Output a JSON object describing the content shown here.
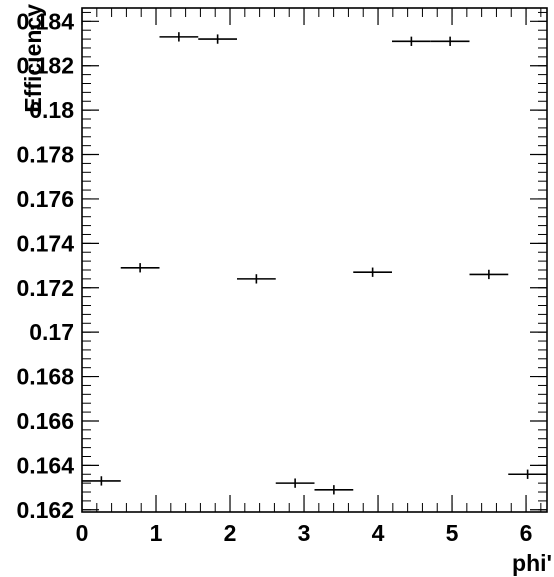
{
  "chart_data": {
    "type": "scatter",
    "title": "",
    "xlabel": "phi'",
    "ylabel": "Efficiency",
    "xlim": [
      0,
      6.2832
    ],
    "ylim": [
      0.1619,
      0.1846
    ],
    "x_ticks": [
      0,
      1,
      2,
      3,
      4,
      5,
      6
    ],
    "x_tick_labels": [
      "0",
      "1",
      "2",
      "3",
      "4",
      "5",
      "6"
    ],
    "y_ticks": [
      0.162,
      0.164,
      0.166,
      0.168,
      0.17,
      0.172,
      0.174,
      0.176,
      0.178,
      0.18,
      0.182,
      0.184
    ],
    "y_tick_labels": [
      "0.162",
      "0.164",
      "0.166",
      "0.168",
      "0.17",
      "0.172",
      "0.174",
      "0.176",
      "0.178",
      "0.18",
      "0.182",
      "0.184"
    ],
    "grid": false,
    "marker": "error-bar crosses (horizontal bin width, small vertical error)",
    "color": "#000000",
    "points": [
      {
        "x": 0.2618,
        "y": 0.1633,
        "xerr": 0.2618,
        "yerr": 0.00012
      },
      {
        "x": 0.7854,
        "y": 0.1729,
        "xerr": 0.2618,
        "yerr": 0.00012
      },
      {
        "x": 1.309,
        "y": 0.1833,
        "xerr": 0.2618,
        "yerr": 0.00012
      },
      {
        "x": 1.8326,
        "y": 0.1832,
        "xerr": 0.2618,
        "yerr": 0.00012
      },
      {
        "x": 2.3562,
        "y": 0.1724,
        "xerr": 0.2618,
        "yerr": 0.00012
      },
      {
        "x": 2.8798,
        "y": 0.1632,
        "xerr": 0.2618,
        "yerr": 0.00012
      },
      {
        "x": 3.4034,
        "y": 0.1629,
        "xerr": 0.2618,
        "yerr": 0.00012
      },
      {
        "x": 3.927,
        "y": 0.1727,
        "xerr": 0.2618,
        "yerr": 0.00012
      },
      {
        "x": 4.4506,
        "y": 0.1831,
        "xerr": 0.2618,
        "yerr": 0.00012
      },
      {
        "x": 4.9742,
        "y": 0.1831,
        "xerr": 0.2618,
        "yerr": 0.00012
      },
      {
        "x": 5.4978,
        "y": 0.1726,
        "xerr": 0.2618,
        "yerr": 0.00012
      },
      {
        "x": 6.0214,
        "y": 0.1636,
        "xerr": 0.2618,
        "yerr": 0.00012
      }
    ]
  }
}
